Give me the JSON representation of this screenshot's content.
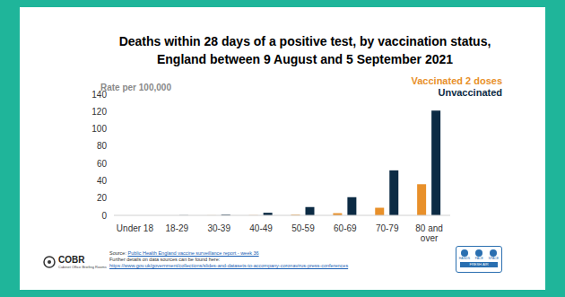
{
  "chart_data": {
    "type": "bar",
    "title": "Deaths within 28 days of a positive test, by vaccination status,\nEngland between 9 August and 5 September 2021",
    "y_label": "Rate per 100,000",
    "categories": [
      "Under 18",
      "18-29",
      "30-39",
      "40-49",
      "50-59",
      "60-69",
      "70-79",
      "80 and over"
    ],
    "series": [
      {
        "name": "Vaccinated 2 doses",
        "color": "#e8902a",
        "values": [
          0,
          0,
          0.1,
          0.2,
          0.8,
          2.5,
          8.8,
          36
        ]
      },
      {
        "name": "Unvaccinated",
        "color": "#0c2b44",
        "values": [
          0,
          0.2,
          0.9,
          3,
          9.6,
          21,
          52,
          121
        ]
      }
    ],
    "ylim": [
      0,
      140
    ],
    "yticks": [
      0,
      20,
      40,
      60,
      80,
      100,
      120,
      140
    ],
    "grid": false,
    "legend": "upper right"
  },
  "footer": {
    "source_prefix": "Source: ",
    "source_link": "Public Health England vaccine surveillance report - week 36",
    "details": "Further details on data sources can be found here:",
    "url": "https://www.gov.uk/government/collections/slides-and-datasets-to-accompany-coronavirus-press-conferences",
    "logo": "COBR",
    "logo_caption": "Cabinet Office Briefing Rooms",
    "badge": [
      "HANDS",
      "FACE",
      "SPACE",
      "FRESH AIR"
    ]
  }
}
